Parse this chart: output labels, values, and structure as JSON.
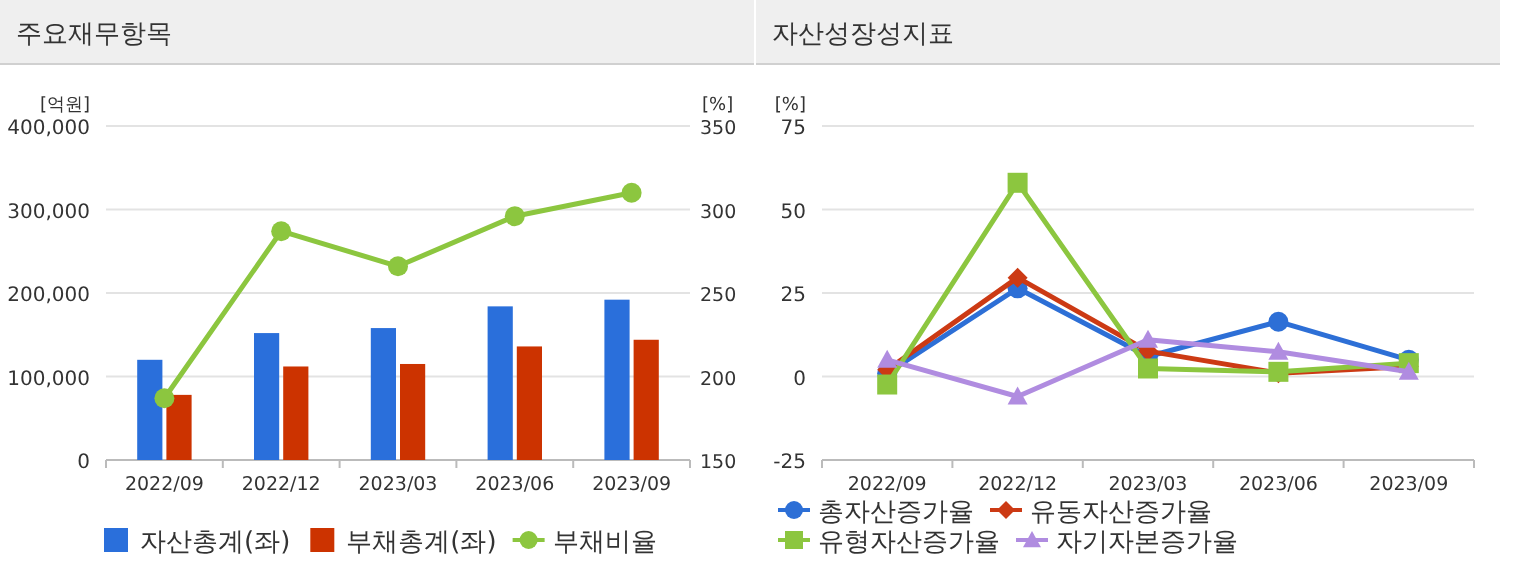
{
  "chart_data": [
    {
      "type": "bar",
      "title": "주요재무항목",
      "ylabel": "[억원]",
      "y2label": "[%]",
      "categories": [
        "2022/09",
        "2022/12",
        "2023/03",
        "2023/06",
        "2023/09"
      ],
      "series": [
        {
          "name": "자산총계(좌)",
          "color": "#2a6fdb",
          "values": [
            120000,
            152000,
            158000,
            184000,
            192000
          ]
        },
        {
          "name": "부채총계(좌)",
          "color": "#cc3300",
          "values": [
            78000,
            112000,
            115000,
            136000,
            144000
          ]
        },
        {
          "name": "부채비율",
          "type": "line",
          "axis": "y2",
          "marker": "circle",
          "color": "#8cc63f",
          "values": [
            187,
            287,
            266,
            296,
            310
          ]
        }
      ],
      "ylim": [
        0,
        400000
      ],
      "yticks": [
        0,
        {
          "value": 100000,
          "label": "100,000"
        },
        {
          "value": 200000,
          "label": "200,000"
        },
        {
          "value": 300000,
          "label": "300,000"
        },
        {
          "value": 400000,
          "label": "400,000"
        }
      ],
      "y2lim": [
        150,
        350
      ],
      "y2ticks": [
        150,
        200,
        250,
        300,
        350
      ],
      "grid": "y",
      "legend": "bottom"
    },
    {
      "type": "line",
      "title": "자산성장성지표",
      "ylabel": "[%]",
      "categories": [
        "2022/09",
        "2022/12",
        "2023/03",
        "2023/06",
        "2023/09"
      ],
      "series": [
        {
          "name": "총자산증가율",
          "marker": "circle",
          "color": "#2d6fd6",
          "values": [
            1,
            26.4,
            6,
            16.4,
            5
          ]
        },
        {
          "name": "유동자산증가율",
          "marker": "diamond",
          "color": "#cc3a14",
          "values": [
            2,
            29.6,
            7.6,
            1,
            3
          ]
        },
        {
          "name": "유형자산증가율",
          "marker": "square",
          "color": "#8cc63f",
          "values": [
            -2.4,
            58,
            2.4,
            1.4,
            4
          ]
        },
        {
          "name": "자기자본증가율",
          "marker": "triangle",
          "color": "#b08ce0",
          "values": [
            5,
            -6,
            11,
            7.4,
            1.4
          ]
        }
      ],
      "ylim": [
        -25,
        75
      ],
      "yticks": [
        -25,
        0,
        25,
        50,
        75
      ],
      "grid": "y",
      "legend": "bottom"
    }
  ]
}
